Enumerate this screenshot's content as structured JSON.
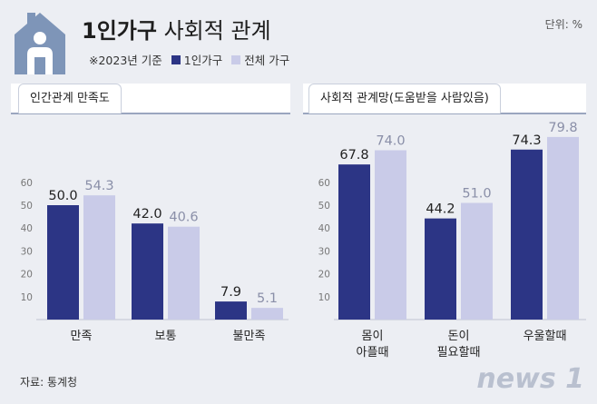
{
  "header": {
    "title_bold": "1인가구",
    "title_rest": "사회적 관계",
    "unit": "단위: %",
    "note": "※2023년 기준",
    "legend": [
      {
        "label": "1인가구",
        "color": "#2c3585"
      },
      {
        "label": "전체 가구",
        "color": "#c9cbe8"
      }
    ]
  },
  "source": "자료: 통계청",
  "logo": "news 1",
  "chart_data": [
    {
      "type": "bar",
      "title": "인간관계 만족도",
      "categories": [
        [
          "만족"
        ],
        [
          "보통"
        ],
        [
          "불만족"
        ]
      ],
      "series": [
        {
          "name": "1인가구",
          "values": [
            50.0,
            42.0,
            7.9
          ]
        },
        {
          "name": "전체 가구",
          "values": [
            54.3,
            40.6,
            5.1
          ]
        }
      ],
      "labels": [
        [
          "50.0",
          "42.0",
          "7.9"
        ],
        [
          "54.3",
          "40.6",
          "5.1"
        ]
      ],
      "ylim": [
        0,
        75
      ],
      "yticks": [
        "10",
        "20",
        "30",
        "40",
        "50",
        "60"
      ],
      "grid": false,
      "legend": "top-left"
    },
    {
      "type": "bar",
      "title": "사회적 관계망(도움받을 사람있음)",
      "categories": [
        [
          "몸이",
          "아플때"
        ],
        [
          "돈이",
          "필요할때"
        ],
        [
          "우울할때"
        ]
      ],
      "series": [
        {
          "name": "1인가구",
          "values": [
            67.8,
            44.2,
            74.3
          ]
        },
        {
          "name": "전체 가구",
          "values": [
            74.0,
            51.0,
            79.8
          ]
        }
      ],
      "labels": [
        [
          "67.8",
          "44.2",
          "74.3"
        ],
        [
          "74.0",
          "51.0",
          "79.8"
        ]
      ],
      "ylim": [
        0,
        85
      ],
      "yticks": [
        "10",
        "20",
        "30",
        "40",
        "50",
        "60"
      ],
      "grid": false,
      "legend": "top-left"
    }
  ]
}
